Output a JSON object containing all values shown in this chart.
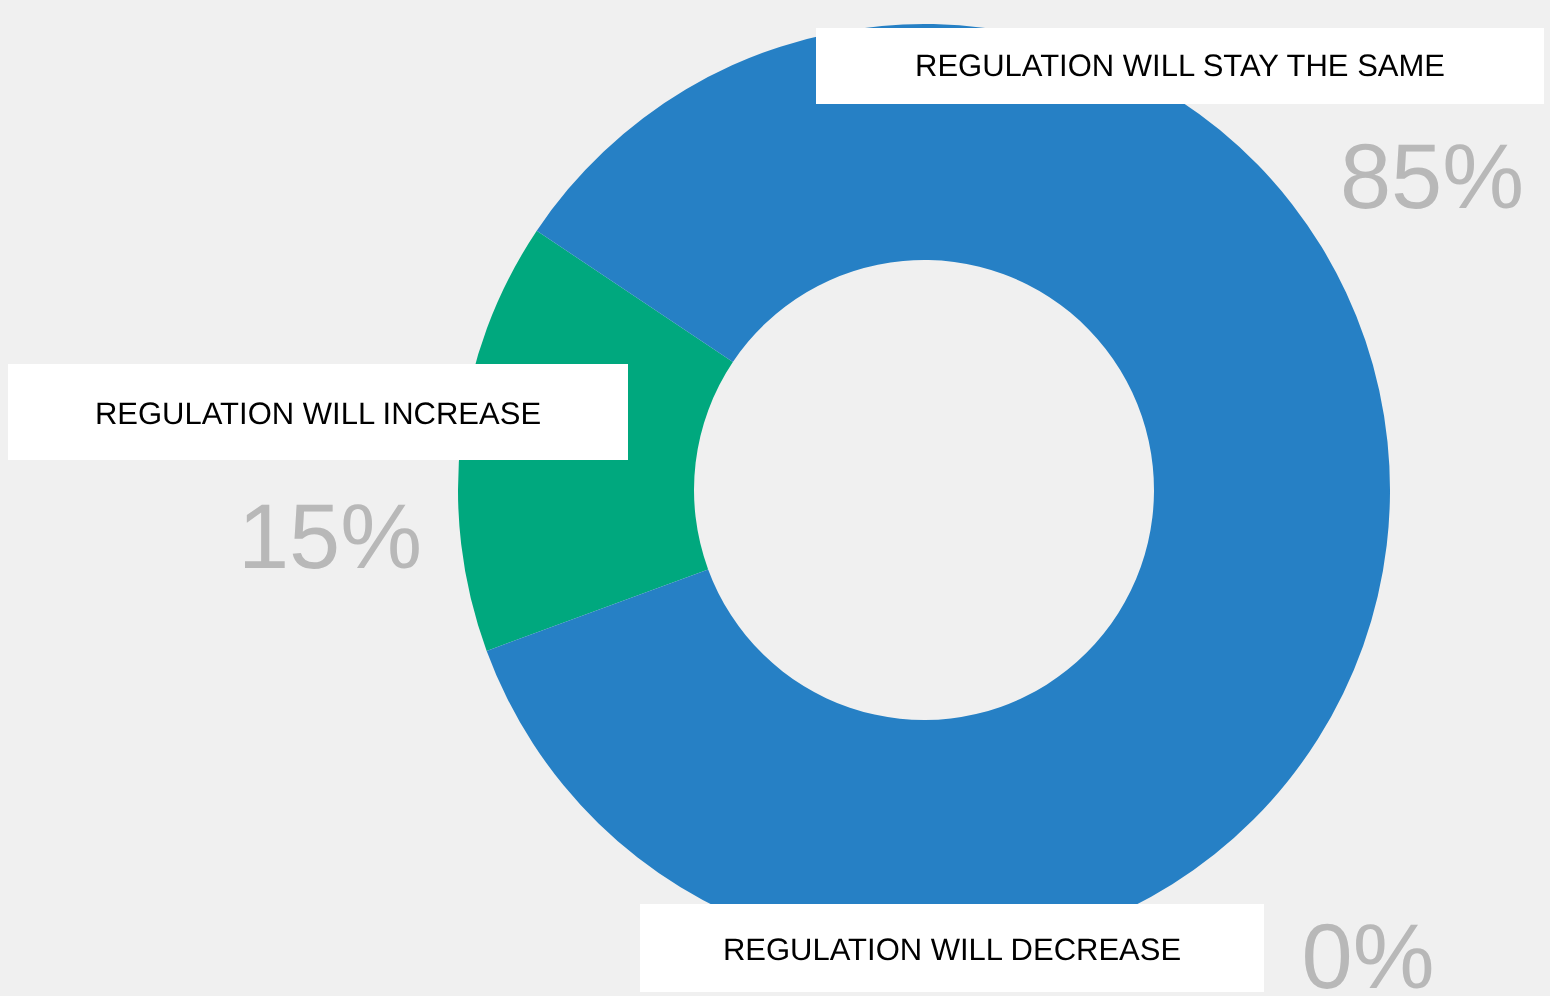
{
  "chart_data": {
    "type": "donut",
    "categories": [
      "REGULATION WILL INCREASE",
      "REGULATION WILL STAY THE SAME",
      "REGULATION WILL DECREASE"
    ],
    "values": [
      15,
      85,
      0
    ],
    "colors": [
      "#00a87e",
      "#2680c5",
      "#2680c5"
    ],
    "value_labels": [
      "15%",
      "85%",
      "0%"
    ]
  }
}
